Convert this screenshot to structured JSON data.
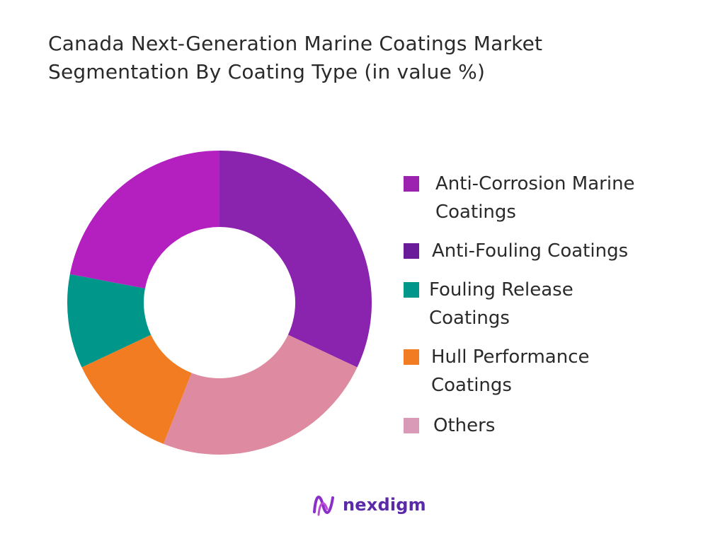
{
  "title_line1": "Canada Next-Generation Marine Coatings Market",
  "title_line2": "Segmentation By Coating Type (in value %)",
  "legend": [
    {
      "line1": "Anti-Corrosion Marine",
      "line2": "Coatings",
      "color": "#9b23b0"
    },
    {
      "line1": "Anti-Fouling Coatings",
      "line2": "",
      "color": "#6a1b9a"
    },
    {
      "line1": "Fouling Release",
      "line2": "Coatings",
      "color": "#00968a"
    },
    {
      "line1": "Hull Performance",
      "line2": "Coatings",
      "color": "#f27c21"
    },
    {
      "line1": "Others",
      "line2": "",
      "color": "#d99ab7"
    }
  ],
  "brand": {
    "name": "nexdigm",
    "color": "#5b2aa8"
  },
  "chart_data": {
    "type": "pie",
    "donut": true,
    "title": "Canada Next-Generation Marine Coatings Market Segmentation By Coating Type (in value %)",
    "slices": [
      {
        "label": "Anti-Fouling Coatings",
        "value": 32,
        "color": "#8a23ad"
      },
      {
        "label": "Others",
        "value": 24,
        "color": "#de8aa0"
      },
      {
        "label": "Hull Performance Coatings",
        "value": 12,
        "color": "#f27c21"
      },
      {
        "label": "Fouling Release Coatings",
        "value": 10,
        "color": "#00968a"
      },
      {
        "label": "Anti-Corrosion Marine Coatings",
        "value": 22,
        "color": "#b41fbf"
      }
    ],
    "legend_position": "right"
  }
}
